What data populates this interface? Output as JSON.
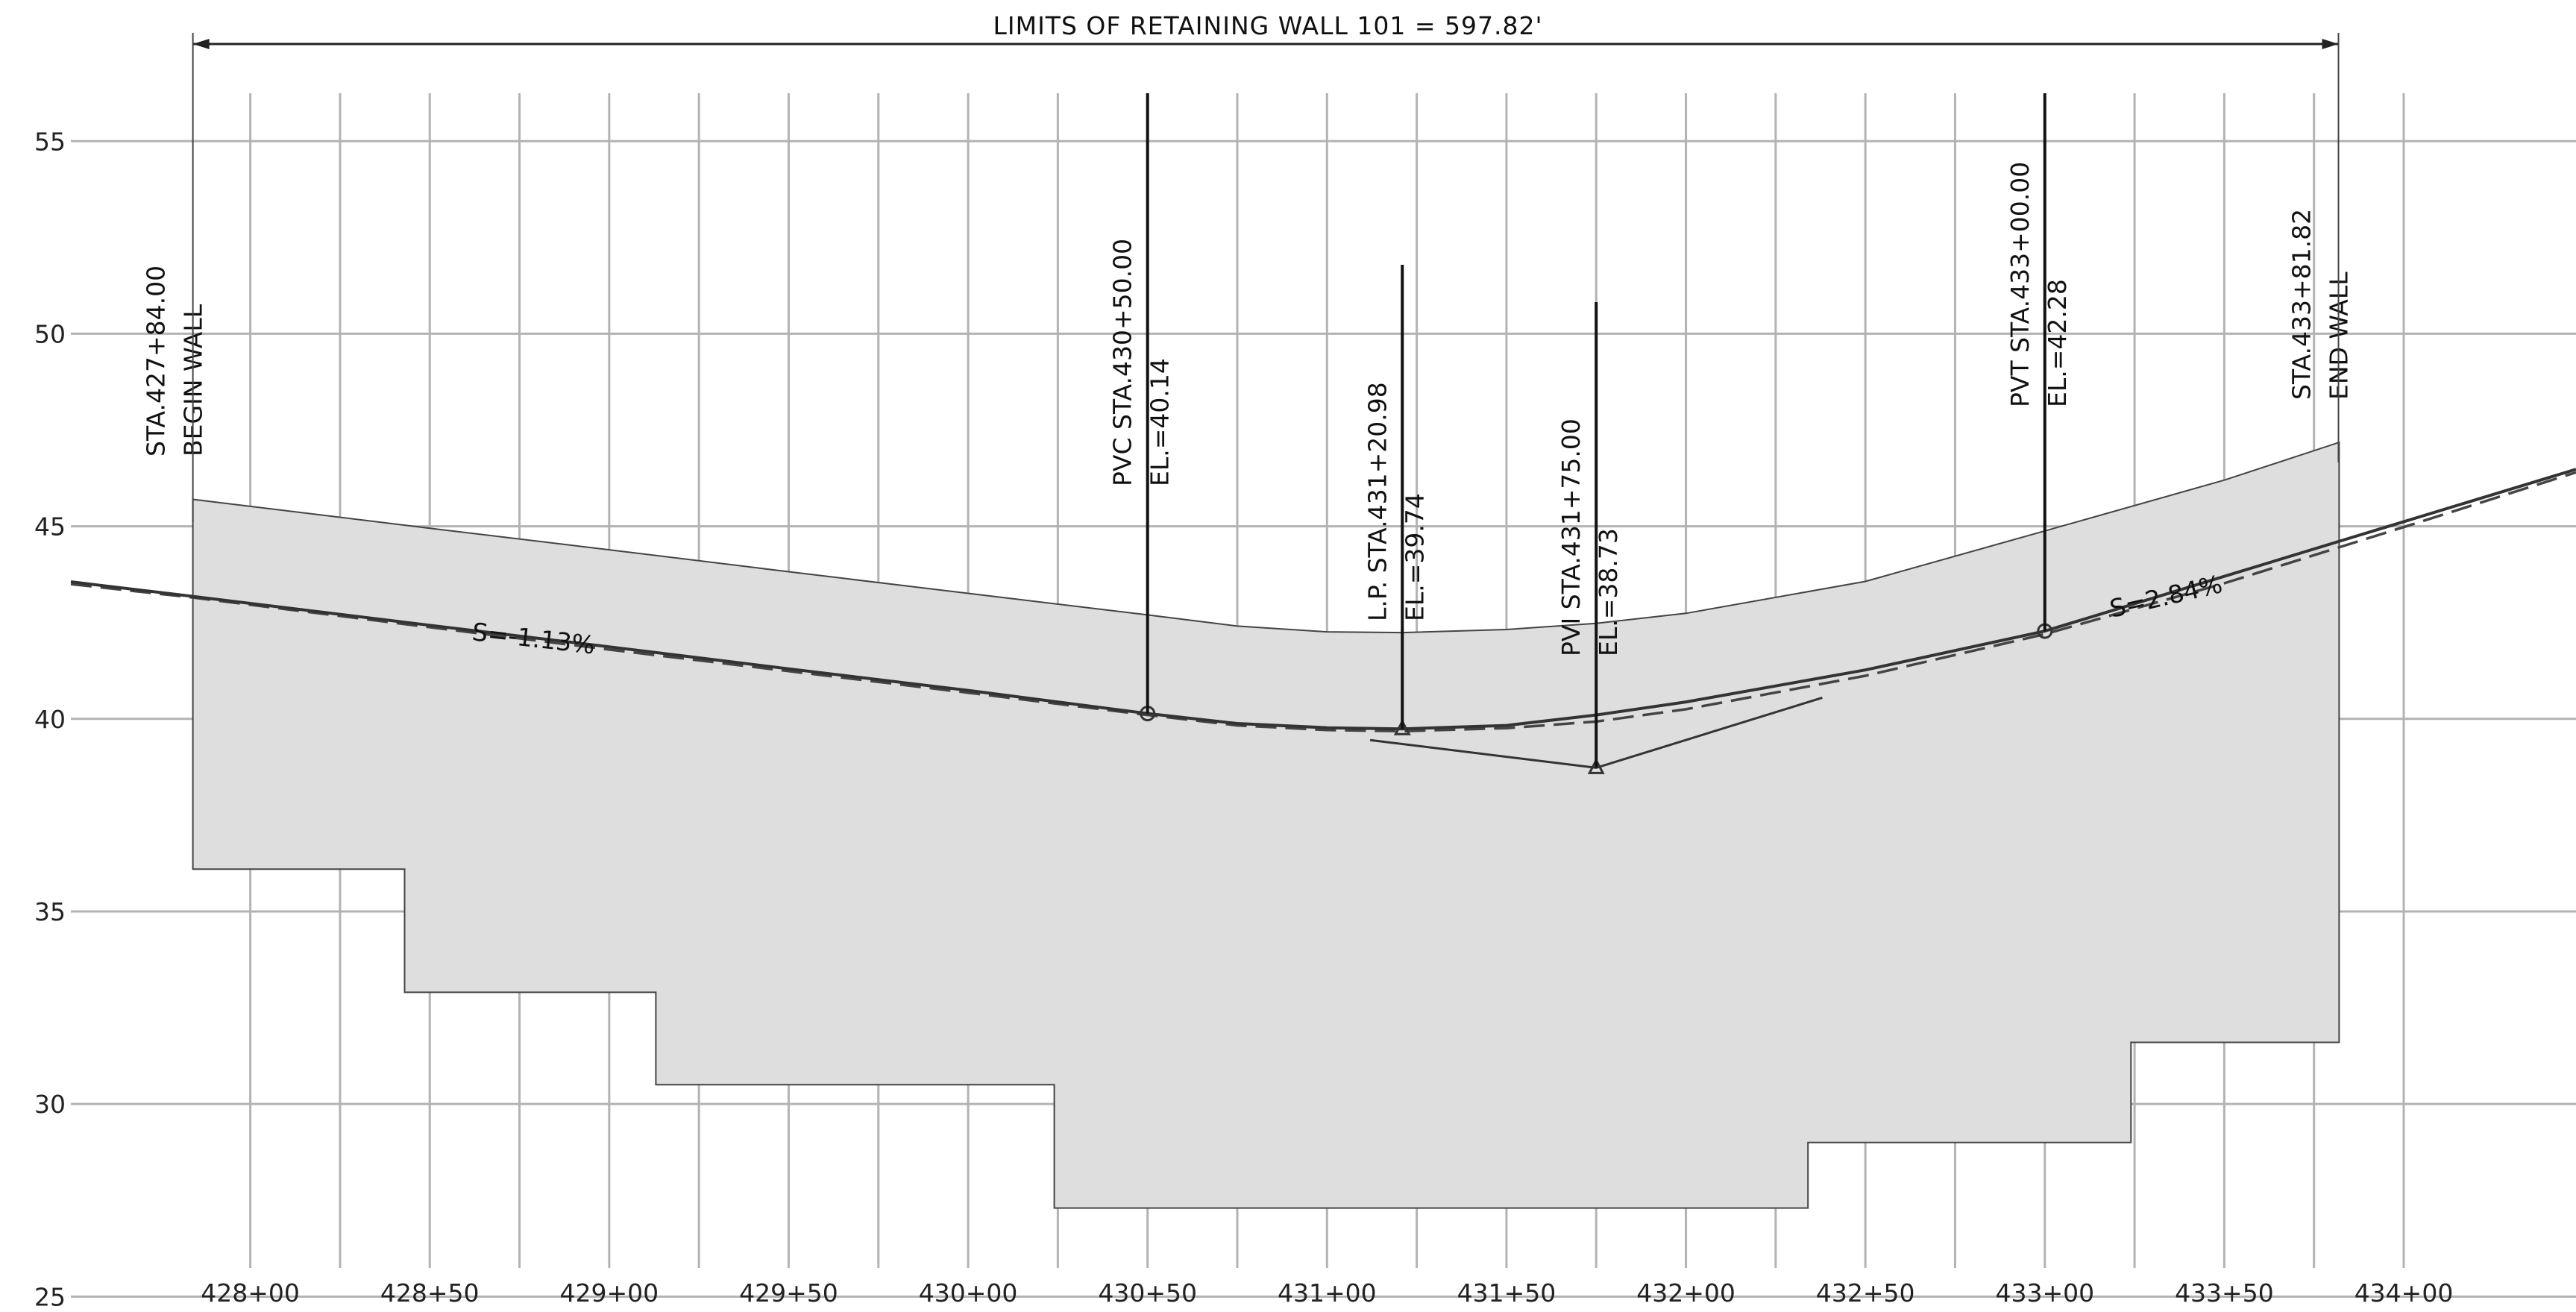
{
  "chart_data": {
    "type": "line",
    "title": "LIMITS  OF  RETAINING  WALL  101  =  597.82'",
    "x_ticks": [
      "428+00",
      "428+50",
      "429+00",
      "429+50",
      "430+00",
      "430+50",
      "431+00",
      "431+50",
      "432+00",
      "432+50",
      "433+00",
      "433+50",
      "434+00"
    ],
    "y_ticks": [
      "25",
      "30",
      "35",
      "40",
      "45",
      "50",
      "55"
    ],
    "xlim": [
      427.5,
      434.48
    ],
    "ylim": [
      24.6,
      57.6
    ],
    "grid": true,
    "series": [
      {
        "role": "proposed-profile",
        "points": [
          [
            427.5,
            43.56
          ],
          [
            427.84,
            43.18
          ],
          [
            428.5,
            42.43
          ],
          [
            429.0,
            41.87
          ],
          [
            429.5,
            41.3
          ],
          [
            430.0,
            40.74
          ],
          [
            430.5,
            40.14
          ],
          [
            430.75,
            39.88
          ],
          [
            431.0,
            39.77
          ],
          [
            431.21,
            39.74
          ],
          [
            431.5,
            39.83
          ],
          [
            431.75,
            40.1
          ],
          [
            432.0,
            40.44
          ],
          [
            432.5,
            41.27
          ],
          [
            433.0,
            42.28
          ],
          [
            433.5,
            43.7
          ],
          [
            434.0,
            45.12
          ],
          [
            434.48,
            46.48
          ]
        ]
      },
      {
        "role": "existing-ground",
        "points": [
          [
            427.5,
            43.5
          ],
          [
            427.84,
            43.15
          ],
          [
            428.5,
            42.38
          ],
          [
            429.0,
            41.8
          ],
          [
            429.5,
            41.24
          ],
          [
            430.0,
            40.68
          ],
          [
            430.5,
            40.1
          ],
          [
            430.75,
            39.83
          ],
          [
            431.0,
            39.71
          ],
          [
            431.21,
            39.68
          ],
          [
            431.5,
            39.76
          ],
          [
            431.75,
            39.93
          ],
          [
            432.0,
            40.25
          ],
          [
            432.5,
            41.12
          ],
          [
            433.0,
            42.2
          ],
          [
            433.5,
            43.52
          ],
          [
            434.0,
            44.98
          ],
          [
            434.48,
            46.4
          ]
        ]
      }
    ],
    "wall_top": [
      [
        427.84,
        45.7
      ],
      [
        428.5,
        44.95
      ],
      [
        429.0,
        44.39
      ],
      [
        429.5,
        43.82
      ],
      [
        430.0,
        43.26
      ],
      [
        430.5,
        42.7
      ],
      [
        430.75,
        42.41
      ],
      [
        431.0,
        42.26
      ],
      [
        431.21,
        42.24
      ],
      [
        431.5,
        42.32
      ],
      [
        431.75,
        42.48
      ],
      [
        432.0,
        42.74
      ],
      [
        432.5,
        43.57
      ],
      [
        433.0,
        44.88
      ],
      [
        433.5,
        46.2
      ],
      [
        433.82,
        47.18
      ]
    ],
    "wall_bottom_steps": [
      [
        433.82,
        31.6
      ],
      [
        433.24,
        31.6
      ],
      [
        433.24,
        29.0
      ],
      [
        432.34,
        29.0
      ],
      [
        432.34,
        27.3
      ],
      [
        430.24,
        27.3
      ],
      [
        430.24,
        30.5
      ],
      [
        429.13,
        30.5
      ],
      [
        429.13,
        32.9
      ],
      [
        428.43,
        32.9
      ],
      [
        428.43,
        36.1
      ],
      [
        427.84,
        36.1
      ]
    ],
    "tangent_line": [
      [
        431.12,
        39.45
      ],
      [
        431.75,
        38.73
      ],
      [
        432.38,
        40.55
      ]
    ],
    "annotations": [
      {
        "id": "begin-wall",
        "lines": [
          "STA.427+84.00",
          "BEGIN  WALL"
        ],
        "station": 427.84
      },
      {
        "id": "pvc",
        "lines": [
          "PVC  STA.430+50.00",
          "EL.=40.14"
        ],
        "station": 430.5,
        "elevation": 40.14
      },
      {
        "id": "lp",
        "lines": [
          "L.P.  STA.431+20.98",
          "EL.=39.74"
        ],
        "station": 431.2098,
        "elevation": 39.74
      },
      {
        "id": "pvi",
        "lines": [
          "PVI  STA.431+75.00",
          "EL.=38.73"
        ],
        "station": 431.75,
        "elevation": 38.73
      },
      {
        "id": "pvt",
        "lines": [
          "PVT  STA.433+00.00",
          "EL.=42.28"
        ],
        "station": 433.0,
        "elevation": 42.28
      },
      {
        "id": "end-wall",
        "lines": [
          "STA.433+81.82",
          "END  WALL"
        ],
        "station": 433.8182
      }
    ],
    "grades": [
      "S=-1.13%",
      "S=2.84%"
    ]
  }
}
